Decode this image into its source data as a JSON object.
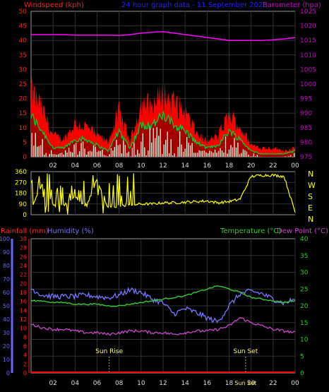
{
  "header": {
    "left_label": "Windspeed (kph)",
    "center_label": "24 hour graph data - 11 September 2023",
    "right_label": "Barometer (hpa)"
  },
  "colors": {
    "wind_gust": "#ff0000",
    "wind_avg": "#00cc33",
    "wind_min": "#e8ffe8",
    "barometer": "#ff00ff",
    "direction": "#ffff00",
    "temperature": "#33cc33",
    "dewpoint": "#cc44cc",
    "humidity": "#7777ff",
    "rainfall": "#ff0000",
    "left_axis": "#ff2222",
    "baro_axis": "#cc00cc",
    "dir_axis": "#ffff00",
    "hum_axis": "#6666ff",
    "temp_axis": "#33cc33",
    "grid": "#333333",
    "title": "#2222ff"
  },
  "x_ticks": [
    "02",
    "04",
    "06",
    "08",
    "10",
    "12",
    "14",
    "16",
    "18",
    "20",
    "22",
    "00"
  ],
  "panels": {
    "wind": {
      "y_ticks": [
        "0",
        "5",
        "10",
        "15",
        "20",
        "25",
        "30",
        "35",
        "40",
        "45",
        "50"
      ],
      "baro_ticks": [
        "975",
        "980",
        "985",
        "990",
        "995",
        "1000",
        "1005",
        "1010",
        "1015",
        "1020",
        "1025"
      ]
    },
    "direction": {
      "y_ticks": [
        "0",
        "90",
        "180",
        "270",
        "360"
      ],
      "compass": [
        "N",
        "W",
        "S",
        "E",
        "N"
      ]
    },
    "temp": {
      "left_label1": "Rainfall (mm)",
      "left_label2": "Humidity (%)",
      "right_label1": "Temperature (°C)",
      "right_label2": "Dew Point (°C)",
      "rain_ticks": [
        "0",
        "2",
        "4",
        "6",
        "8",
        "10",
        "12",
        "14",
        "16",
        "18",
        "20",
        "22",
        "24",
        "26",
        "28",
        "30"
      ],
      "hum_ticks": [
        "0",
        "10",
        "20",
        "30",
        "40",
        "50",
        "60",
        "70",
        "80",
        "90",
        "100"
      ],
      "temp_ticks": [
        "0",
        "5",
        "10",
        "15",
        "20",
        "25",
        "30",
        "35",
        "40"
      ],
      "sunrise_label": "Sun Rise",
      "sunset_label": "Sun Set",
      "bottom_label": "Sun Set"
    }
  },
  "chart_data": [
    {
      "type": "line",
      "title": "24 hour graph data - 11 September 2023",
      "xlabel": "",
      "ylabel": "Windspeed (kph)",
      "y2label": "Barometer (hpa)",
      "x": [
        0,
        1,
        2,
        3,
        4,
        5,
        6,
        7,
        8,
        9,
        10,
        11,
        12,
        13,
        14,
        15,
        16,
        17,
        18,
        19,
        20,
        21,
        22,
        23,
        24
      ],
      "ylim": [
        0,
        50
      ],
      "y2lim": [
        975,
        1025
      ],
      "series": [
        {
          "values": [
            22,
            16,
            7,
            6,
            11,
            10,
            7,
            5,
            15,
            5,
            18,
            17,
            21,
            18,
            15,
            8,
            5,
            7,
            14,
            10,
            4,
            3,
            3,
            2,
            3
          ]
        },
        {
          "values": [
            14,
            9,
            3,
            3,
            6,
            6,
            4,
            2,
            9,
            3,
            11,
            11,
            14,
            11,
            9,
            5,
            3,
            4,
            9,
            6,
            2,
            1,
            1,
            1,
            2
          ]
        },
        {
          "values": [
            7,
            4,
            1,
            1,
            3,
            3,
            2,
            1,
            5,
            1,
            7,
            6,
            8,
            6,
            5,
            2,
            1,
            2,
            5,
            3,
            1,
            0,
            0,
            0,
            1
          ]
        },
        {
          "axis": "right",
          "values": [
            1017,
            1017,
            1017,
            1017,
            1016.8,
            1016.8,
            1016.8,
            1016.8,
            1016.7,
            1017,
            1017.5,
            1017.8,
            1018,
            1017.5,
            1017,
            1016.5,
            1016,
            1015.5,
            1015,
            1015,
            1015,
            1015,
            1015.2,
            1015.5,
            1016
          ]
        }
      ]
    },
    {
      "type": "scatter",
      "title": "",
      "ylabel": "",
      "x": [
        0,
        1,
        2,
        3,
        4,
        5,
        6,
        7,
        8,
        9,
        10,
        11,
        12,
        13,
        14,
        15,
        16,
        17,
        18,
        19,
        20,
        21,
        22,
        23,
        24
      ],
      "ylim": [
        0,
        360
      ],
      "series": [
        {
          "values": [
            45,
            250,
            90,
            80,
            150,
            60,
            300,
            60,
            70,
            80,
            90,
            90,
            100,
            100,
            105,
            110,
            115,
            100,
            110,
            130,
            320,
            330,
            330,
            320,
            20
          ]
        }
      ]
    },
    {
      "type": "line",
      "title": "",
      "ylabel": "Rainfall (mm) / Humidity (%)",
      "y2label": "Temperature (°C) / Dew Point (°C)",
      "x": [
        0,
        1,
        2,
        3,
        4,
        5,
        6,
        7,
        8,
        9,
        10,
        11,
        12,
        13,
        14,
        15,
        16,
        17,
        18,
        19,
        20,
        21,
        22,
        23,
        24
      ],
      "ylim": [
        0,
        100
      ],
      "y2lim": [
        0,
        40
      ],
      "series": [
        {
          "axis": "right",
          "values": [
            21.5,
            21.5,
            21,
            21,
            20.5,
            20.5,
            20.5,
            20,
            20,
            20.5,
            21,
            21.5,
            22,
            22.5,
            23,
            24,
            25,
            26,
            25,
            24,
            22.5,
            22,
            21.5,
            21,
            21.5
          ]
        },
        {
          "axis": "right",
          "values": [
            14.5,
            13.5,
            13,
            13,
            12.5,
            12,
            12,
            11.5,
            12,
            12.5,
            12.5,
            12,
            12,
            11.5,
            12,
            12.5,
            12.5,
            13,
            14,
            16.5,
            15,
            14,
            13,
            12.5,
            12
          ]
        },
        {
          "values": [
            63,
            58,
            57,
            57,
            57,
            58,
            57,
            56,
            58,
            62,
            60,
            55,
            52,
            44,
            48,
            45,
            41,
            38,
            50,
            59,
            61,
            59,
            55,
            52,
            55
          ]
        },
        {
          "values": [
            0,
            0,
            0,
            0,
            0,
            0,
            0,
            0,
            0,
            0,
            0,
            0,
            0,
            0,
            0,
            0,
            0,
            0,
            0,
            0,
            0,
            0,
            0,
            0,
            0
          ]
        }
      ]
    }
  ]
}
